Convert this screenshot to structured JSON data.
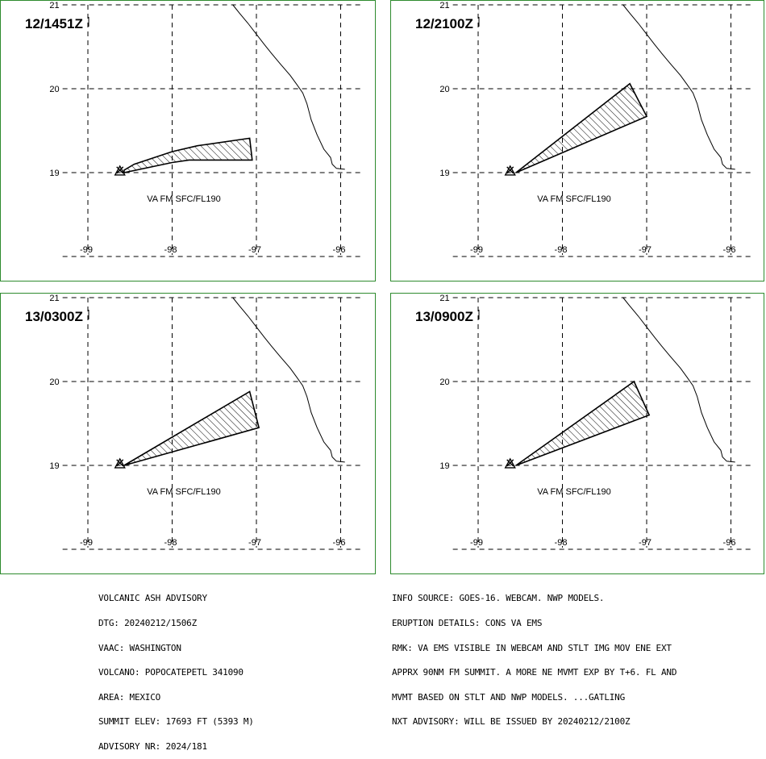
{
  "panels": [
    {
      "time": "12/1451Z",
      "label": "VA FM SFC/FL190",
      "ash_cloud": [
        [
          -98.57,
          19.03
        ],
        [
          -98.45,
          19.1
        ],
        [
          -98.0,
          19.25
        ],
        [
          -97.7,
          19.32
        ],
        [
          -97.08,
          19.41
        ],
        [
          -97.05,
          19.15
        ],
        [
          -97.8,
          19.15
        ],
        [
          -98.0,
          19.12
        ],
        [
          -98.57,
          19.0
        ]
      ]
    },
    {
      "time": "12/2100Z",
      "label": "VA FM SFC/FL190",
      "ash_cloud": [
        [
          -98.55,
          19.0
        ],
        [
          -97.2,
          20.06
        ],
        [
          -97.0,
          19.67
        ]
      ]
    },
    {
      "time": "13/0300Z",
      "label": "VA FM SFC/FL190",
      "ash_cloud": [
        [
          -98.57,
          19.0
        ],
        [
          -97.08,
          19.88
        ],
        [
          -96.97,
          19.45
        ]
      ]
    },
    {
      "time": "13/0900Z",
      "label": "VA FM SFC/FL190",
      "ash_cloud": [
        [
          -98.55,
          19.0
        ],
        [
          -97.15,
          20.0
        ],
        [
          -96.97,
          19.6
        ]
      ]
    }
  ],
  "axes": {
    "lon_ticks": [
      "-99",
      "-98",
      "-97",
      "-96"
    ],
    "lat_ticks": [
      "21",
      "20",
      "19"
    ]
  },
  "volcano": {
    "name": "POPOCATEPETL",
    "lon": -98.62,
    "lat": 19.02
  },
  "advisory_left": [
    "VOLCANIC ASH ADVISORY",
    "DTG: 20240212/1506Z",
    "VAAC: WASHINGTON",
    "VOLCANO: POPOCATEPETL 341090",
    "AREA: MEXICO",
    "SUMMIT ELEV: 17693 FT (5393 M)",
    "ADVISORY NR: 2024/181"
  ],
  "advisory_right": [
    "INFO SOURCE: GOES-16. WEBCAM. NWP MODELS.",
    "ERUPTION DETAILS: CONS VA EMS",
    "RMK: VA EMS VISIBLE IN WEBCAM AND STLT IMG MOV ENE EXT",
    "APPRX 90NM FM SUMMIT. A MORE NE MVMT EXP BY T+6. FL AND",
    "MVMT BASED ON STLT AND NWP MODELS. ...GATLING",
    "NXT ADVISORY: WILL BE ISSUED BY 20240212/2100Z"
  ],
  "colors": {
    "frame": "#2e8b2e",
    "line": "#000000"
  }
}
